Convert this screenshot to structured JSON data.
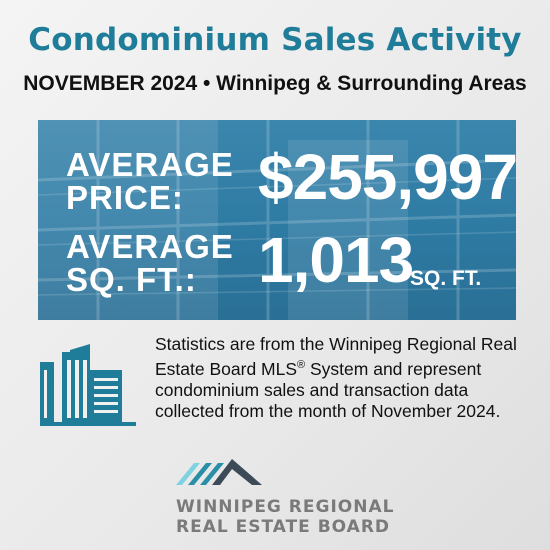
{
  "header": {
    "title": "Condominium Sales Activity",
    "subtitle": "NOVEMBER 2024 • Winnipeg & Surrounding Areas"
  },
  "stats": {
    "price_label_line1": "AVERAGE",
    "price_label_line2": "PRICE:",
    "price_value": "$255,997",
    "sqft_label_line1": "AVERAGE",
    "sqft_label_line2": "SQ. FT.:",
    "sqft_value": "1,013",
    "sqft_unit": "SQ. FT."
  },
  "description": {
    "part1": "Statistics are from the Winnipeg Regional Real Estate Board MLS",
    "registered": "®",
    "part2": " System and represent condominium sales and transaction data collected from the month of November 2024."
  },
  "logo": {
    "line1": "WINNIPEG REGIONAL",
    "line2": "REAL ESTATE BOARD"
  },
  "icons": {
    "building": "building-icon",
    "logo_roof": "roof-logo-icon"
  },
  "colors": {
    "title": "#1f7d99",
    "panel": "#2d7aa3",
    "icon": "#1f7d99",
    "logo_teal": "#2a8fa6",
    "logo_light": "#7fd3e0",
    "logo_dark": "#3c4b57",
    "logo_text": "#7a7a7a"
  }
}
